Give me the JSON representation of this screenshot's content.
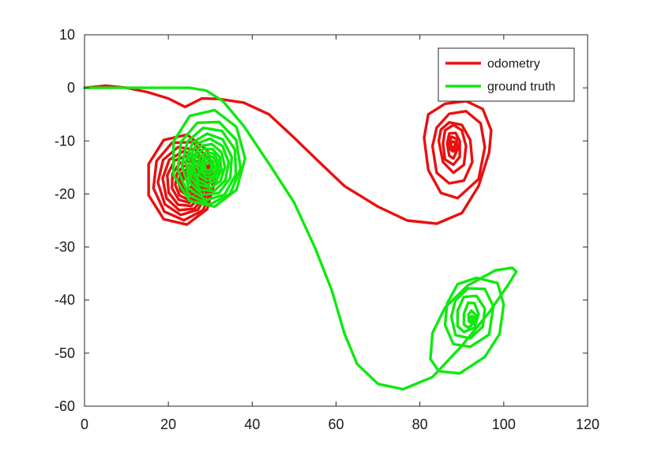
{
  "chart_data": {
    "type": "line",
    "title": "",
    "xlabel": "",
    "ylabel": "",
    "xlim": [
      0,
      120
    ],
    "ylim": [
      -60,
      10
    ],
    "xticks": [
      0,
      20,
      40,
      60,
      80,
      100,
      120
    ],
    "yticks": [
      10,
      0,
      -10,
      -20,
      -30,
      -40,
      -50,
      -60
    ],
    "grid": false,
    "legend_position": "top-right",
    "series": [
      {
        "name": "odometry",
        "color": "#e81010",
        "x": [
          0,
          5,
          10,
          15,
          20,
          24,
          28,
          32,
          38,
          44,
          50,
          56,
          62,
          70,
          77,
          84,
          90,
          94,
          96.5,
          97,
          95,
          91,
          86,
          82,
          81,
          82,
          85,
          89,
          94,
          95.5,
          94.5,
          91,
          87,
          84,
          83,
          84,
          87,
          90.5,
          92.5,
          92,
          90,
          87,
          85,
          84.5,
          85.5,
          88,
          90.5,
          91,
          90,
          88,
          86,
          85.5,
          86,
          88,
          89.5,
          89.5,
          88.5,
          87,
          86.5,
          87,
          88,
          89,
          88.7,
          87.5,
          87,
          87.2,
          88,
          88.5,
          88.3,
          87.6,
          87.4,
          87.8,
          88.2
        ],
        "y": [
          0,
          0.4,
          0,
          -0.8,
          -2,
          -3.6,
          -2,
          -2.1,
          -2.8,
          -5,
          -9.4,
          -14,
          -18.5,
          -22.4,
          -25,
          -25.6,
          -23.6,
          -18.5,
          -12.2,
          -8,
          -4,
          -2.5,
          -3,
          -5,
          -9.4,
          -15.5,
          -19.8,
          -20.8,
          -17.2,
          -11.2,
          -6.7,
          -4.4,
          -4.9,
          -7.5,
          -11,
          -16,
          -18,
          -17.5,
          -14,
          -9.8,
          -7,
          -6.5,
          -7.9,
          -10,
          -14,
          -16,
          -14.5,
          -11,
          -8,
          -7,
          -8,
          -10.5,
          -13.5,
          -14.5,
          -13,
          -10,
          -8.5,
          -8.6,
          -10.5,
          -12.8,
          -13.3,
          -11.5,
          -9.6,
          -9.2,
          -10.3,
          -11.6,
          -12,
          -11.3,
          -10.2,
          -10.1,
          -10.8,
          -11.5,
          -11
        ]
      },
      {
        "name": "ground truth",
        "color": "#10e810",
        "x": [
          0,
          8,
          15,
          20,
          25,
          29,
          33,
          38,
          44,
          50,
          55,
          59,
          62,
          65,
          70,
          76,
          83,
          90,
          96.5,
          101,
          103,
          102,
          98,
          91.5,
          86,
          83,
          82.5,
          84.5,
          89.5,
          95.5,
          99,
          100,
          98.5,
          93.5,
          89,
          86.5,
          86,
          88,
          92,
          96.5,
          97.5,
          95.5,
          91.5,
          88.5,
          87.5,
          88.5,
          92,
          95,
          95.5,
          93.5,
          90.5,
          89,
          89,
          90.5,
          93,
          94,
          93,
          91.5,
          90.5,
          90.5,
          91.5,
          93,
          93.3,
          92.3,
          91.6,
          91.7,
          92.5,
          92.9,
          92.5,
          92,
          92,
          92.5,
          92.2
        ],
        "y": [
          0,
          0,
          0,
          0,
          0,
          -0.5,
          -2.5,
          -7.2,
          -14.3,
          -21.6,
          -30.2,
          -38.2,
          -46.3,
          -52,
          -55.8,
          -56.8,
          -54.5,
          -48.6,
          -42.3,
          -37.2,
          -34.6,
          -33.9,
          -34.4,
          -37.2,
          -41.4,
          -46.2,
          -51.1,
          -53.4,
          -53.8,
          -50.7,
          -46.4,
          -40.8,
          -36.8,
          -35.8,
          -37,
          -40.6,
          -44.7,
          -48.3,
          -48.8,
          -46.5,
          -41.2,
          -37.9,
          -37.8,
          -40,
          -43.1,
          -46.6,
          -47.2,
          -45,
          -41.6,
          -39.2,
          -39.4,
          -42,
          -44.9,
          -46,
          -45.2,
          -42.6,
          -40.6,
          -40.5,
          -42.6,
          -44.6,
          -45.2,
          -44.3,
          -42.8,
          -42,
          -42.7,
          -44,
          -44.5,
          -43.8,
          -43,
          -43.2,
          -43.8,
          -44,
          -43.6
        ]
      }
    ],
    "loops": [
      {
        "series": "odometry",
        "cx": 24.5,
        "cy": -17.8,
        "radii": [
          8.2,
          7.2,
          6.2,
          5.4,
          4.6,
          3.8,
          3.1,
          2.4,
          1.8,
          1.2
        ],
        "offsets_x": [
          -1.5,
          -1,
          -0.8,
          -0.5,
          -0.3,
          0,
          0.2,
          0.3,
          0.2,
          0.1
        ],
        "offsets_y": [
          0.5,
          0.4,
          0.3,
          0.2,
          0.2,
          0.1,
          0,
          0,
          0,
          0
        ]
      },
      {
        "series": "ground truth",
        "cx": 29.5,
        "cy": -14.8,
        "radii": [
          8.8,
          7.6,
          6.6,
          5.6,
          4.8,
          4,
          3.3,
          2.6,
          2,
          1.4,
          0.8
        ],
        "offsets_x": [
          0,
          0.2,
          0.3,
          0.2,
          0.1,
          0,
          -0.1,
          0,
          0.1,
          0,
          0
        ],
        "offsets_y": [
          1.5,
          0.8,
          0.5,
          0.3,
          0.2,
          0.1,
          0,
          0,
          0,
          0,
          0
        ]
      }
    ]
  }
}
